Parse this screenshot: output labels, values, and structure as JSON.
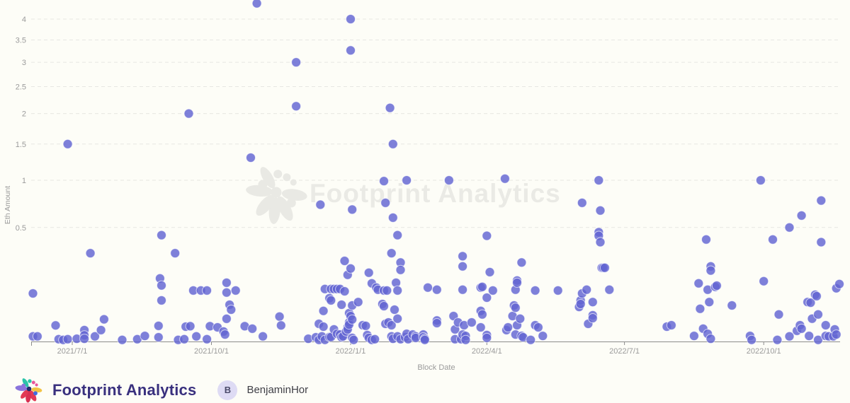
{
  "chart_data": {
    "type": "scatter",
    "title": "",
    "xlabel": "Block Date",
    "ylabel": "Eth Amount",
    "y_scale": "sqrt",
    "grid": "dashed-horizontal",
    "legend": "none",
    "y_ticks": [
      0.5,
      1,
      1.5,
      2,
      2.5,
      3,
      3.5,
      4
    ],
    "y_range": [
      0,
      4.5
    ],
    "x_ticks": [
      {
        "date": "2021-07-01",
        "label": "2021/7/1"
      },
      {
        "date": "2021-10-01",
        "label": "2021/10/1"
      },
      {
        "date": "2022-01-01",
        "label": "2022/1/1"
      },
      {
        "date": "2022-04-01",
        "label": "2022/4/1"
      },
      {
        "date": "2022-07-01",
        "label": "2022/7/1"
      },
      {
        "date": "2022-10-01",
        "label": "2022/10/1"
      }
    ],
    "x_range": [
      "2021-06-04",
      "2022-11-25"
    ],
    "point_color": "#6164D2",
    "points": [
      [
        "2021-06-05",
        0.089
      ],
      [
        "2021-06-05",
        0.001
      ],
      [
        "2021-06-08",
        0.001
      ],
      [
        "2021-06-20",
        0.01
      ],
      [
        "2021-06-22",
        0.0002
      ],
      [
        "2021-06-25",
        0.0001
      ],
      [
        "2021-06-28",
        1.5
      ],
      [
        "2021-06-28",
        0.0002
      ],
      [
        "2021-07-04",
        0.0003
      ],
      [
        "2021-07-09",
        0.005
      ],
      [
        "2021-07-09",
        0.0015
      ],
      [
        "2021-07-09",
        0.0003
      ],
      [
        "2021-07-13",
        0.3
      ],
      [
        "2021-07-16",
        0.001
      ],
      [
        "2021-07-20",
        0.005
      ],
      [
        "2021-07-22",
        0.019
      ],
      [
        "2021-08-03",
        0.0001
      ],
      [
        "2021-08-13",
        0.0002
      ],
      [
        "2021-08-18",
        0.0012
      ],
      [
        "2021-08-27",
        0.0094
      ],
      [
        "2021-08-27",
        0.0007
      ],
      [
        "2021-08-28",
        0.153
      ],
      [
        "2021-08-29",
        0.435
      ],
      [
        "2021-08-29",
        0.121
      ],
      [
        "2021-08-29",
        0.065
      ],
      [
        "2021-09-07",
        0.3
      ],
      [
        "2021-09-09",
        0.0001
      ],
      [
        "2021-09-13",
        0.0002
      ],
      [
        "2021-09-14",
        0.0085
      ],
      [
        "2021-09-16",
        2.0
      ],
      [
        "2021-09-17",
        0.009
      ],
      [
        "2021-09-19",
        0.1
      ],
      [
        "2021-09-21",
        0.001
      ],
      [
        "2021-09-24",
        0.1
      ],
      [
        "2021-09-28",
        0.1
      ],
      [
        "2021-09-28",
        0.0002
      ],
      [
        "2021-09-30",
        0.009
      ],
      [
        "2021-10-05",
        0.0077
      ],
      [
        "2021-10-09",
        0.0038
      ],
      [
        "2021-10-10",
        0.0019
      ],
      [
        "2021-10-11",
        0.133
      ],
      [
        "2021-10-11",
        0.092
      ],
      [
        "2021-10-11",
        0.0198
      ],
      [
        "2021-10-13",
        0.052
      ],
      [
        "2021-10-14",
        0.039
      ],
      [
        "2021-10-17",
        0.1
      ],
      [
        "2021-10-23",
        0.009
      ],
      [
        "2021-10-27",
        1.3
      ],
      [
        "2021-10-28",
        0.0063
      ],
      [
        "2021-10-31",
        4.4
      ],
      [
        "2021-11-04",
        0.001
      ],
      [
        "2021-11-15",
        0.024
      ],
      [
        "2021-11-16",
        0.01
      ],
      [
        "2021-11-26",
        3.0
      ],
      [
        "2021-11-26",
        2.13
      ],
      [
        "2021-12-04",
        0.0003
      ],
      [
        "2021-12-09",
        0.0007
      ],
      [
        "2021-12-11",
        0.012
      ],
      [
        "2021-12-11",
        0.0001
      ],
      [
        "2021-12-12",
        0.72
      ],
      [
        "2021-12-13",
        0.001
      ],
      [
        "2021-12-14",
        0.036
      ],
      [
        "2021-12-14",
        0.0085
      ],
      [
        "2021-12-15",
        0.106
      ],
      [
        "2021-12-15",
        0.0001
      ],
      [
        "2021-12-18",
        0.072
      ],
      [
        "2021-12-18",
        0.0008
      ],
      [
        "2021-12-19",
        0.106
      ],
      [
        "2021-12-19",
        0.065
      ],
      [
        "2021-12-19",
        0.0008
      ],
      [
        "2021-12-21",
        0.106
      ],
      [
        "2021-12-21",
        0.0056
      ],
      [
        "2021-12-23",
        0.106
      ],
      [
        "2021-12-23",
        0.0023
      ],
      [
        "2021-12-25",
        0.106
      ],
      [
        "2021-12-25",
        0.0019
      ],
      [
        "2021-12-26",
        0.052
      ],
      [
        "2021-12-26",
        0.0007
      ],
      [
        "2021-12-27",
        0.001
      ],
      [
        "2021-12-28",
        0.25
      ],
      [
        "2021-12-28",
        0.097
      ],
      [
        "2021-12-29",
        0.0038
      ],
      [
        "2021-12-30",
        0.171
      ],
      [
        "2021-12-30",
        0.0077
      ],
      [
        "2021-12-30",
        0.0056
      ],
      [
        "2021-12-31",
        0.031
      ],
      [
        "2021-12-31",
        0.014
      ],
      [
        "2021-12-31",
        0.011
      ],
      [
        "2022-01-01",
        4.0
      ],
      [
        "2022-01-01",
        3.26
      ],
      [
        "2022-01-01",
        0.205
      ],
      [
        "2022-01-01",
        0.025
      ],
      [
        "2022-01-02",
        0.67
      ],
      [
        "2022-01-02",
        0.05
      ],
      [
        "2022-01-02",
        0.0186
      ],
      [
        "2022-01-02",
        0.0005
      ],
      [
        "2022-01-03",
        0.0001
      ],
      [
        "2022-01-06",
        0.06
      ],
      [
        "2022-01-09",
        0.0102
      ],
      [
        "2022-01-11",
        0.0094
      ],
      [
        "2022-01-12",
        0.0016
      ],
      [
        "2022-01-13",
        0.182
      ],
      [
        "2022-01-13",
        0.0005
      ],
      [
        "2022-01-15",
        0.13
      ],
      [
        "2022-01-15",
        0.0001
      ],
      [
        "2022-01-17",
        0.0002
      ],
      [
        "2022-01-18",
        0.112
      ],
      [
        "2022-01-19",
        0.103
      ],
      [
        "2022-01-22",
        0.054
      ],
      [
        "2022-01-23",
        0.99
      ],
      [
        "2022-01-23",
        0.1
      ],
      [
        "2022-01-23",
        0.048
      ],
      [
        "2022-01-24",
        0.74
      ],
      [
        "2022-01-24",
        0.012
      ],
      [
        "2022-01-25",
        0.1
      ],
      [
        "2022-01-26",
        0.014
      ],
      [
        "2022-01-27",
        2.1
      ],
      [
        "2022-01-28",
        0.3
      ],
      [
        "2022-01-28",
        0.0102
      ],
      [
        "2022-01-28",
        0.001
      ],
      [
        "2022-01-29",
        1.5
      ],
      [
        "2022-01-29",
        0.59
      ],
      [
        "2022-01-29",
        0.0003
      ],
      [
        "2022-01-30",
        0.039
      ],
      [
        "2022-01-31",
        0.133
      ],
      [
        "2022-02-01",
        0.435
      ],
      [
        "2022-02-01",
        0.1
      ],
      [
        "2022-02-01",
        0.02
      ],
      [
        "2022-02-01",
        0.001
      ],
      [
        "2022-02-03",
        0.24
      ],
      [
        "2022-02-03",
        0.197
      ],
      [
        "2022-02-03",
        0.0002
      ],
      [
        "2022-02-06",
        0.0007
      ],
      [
        "2022-02-07",
        1.0
      ],
      [
        "2022-02-07",
        0.0023
      ],
      [
        "2022-02-08",
        0.0002
      ],
      [
        "2022-02-11",
        0.0019
      ],
      [
        "2022-02-13",
        0.001
      ],
      [
        "2022-02-13",
        0.0005
      ],
      [
        "2022-02-18",
        0.0019
      ],
      [
        "2022-02-18",
        0.0007
      ],
      [
        "2022-02-19",
        0.0003
      ],
      [
        "2022-02-19",
        0.0001
      ],
      [
        "2022-02-21",
        0.112
      ],
      [
        "2022-02-27",
        0.103
      ],
      [
        "2022-02-27",
        0.017
      ],
      [
        "2022-02-27",
        0.013
      ],
      [
        "2022-03-07",
        1.0
      ],
      [
        "2022-03-10",
        0.025
      ],
      [
        "2022-03-11",
        0.0056
      ],
      [
        "2022-03-11",
        0.0002
      ],
      [
        "2022-03-13",
        0.014
      ],
      [
        "2022-03-15",
        0.0002
      ],
      [
        "2022-03-16",
        0.28
      ],
      [
        "2022-03-16",
        0.217
      ],
      [
        "2022-03-16",
        0.103
      ],
      [
        "2022-03-16",
        0.0019
      ],
      [
        "2022-03-17",
        0.0102
      ],
      [
        "2022-03-18",
        0.0012
      ],
      [
        "2022-03-18",
        0.0001
      ],
      [
        "2022-03-22",
        0.014
      ],
      [
        "2022-03-28",
        0.112
      ],
      [
        "2022-03-28",
        0.036
      ],
      [
        "2022-03-28",
        0.0077
      ],
      [
        "2022-03-29",
        0.115
      ],
      [
        "2022-03-29",
        0.028
      ],
      [
        "2022-04-01",
        0.43
      ],
      [
        "2022-04-01",
        0.074
      ],
      [
        "2022-04-01",
        0.0016
      ],
      [
        "2022-04-01",
        0.0005
      ],
      [
        "2022-04-03",
        0.185
      ],
      [
        "2022-04-05",
        0.1
      ],
      [
        "2022-04-13",
        1.02
      ],
      [
        "2022-04-14",
        0.005
      ],
      [
        "2022-04-15",
        0.0077
      ],
      [
        "2022-04-18",
        0.025
      ],
      [
        "2022-04-19",
        0.05
      ],
      [
        "2022-04-20",
        0.103
      ],
      [
        "2022-04-20",
        0.044
      ],
      [
        "2022-04-20",
        0.0019
      ],
      [
        "2022-04-21",
        0.143
      ],
      [
        "2022-04-21",
        0.133
      ],
      [
        "2022-04-21",
        0.0102
      ],
      [
        "2022-04-23",
        0.02
      ],
      [
        "2022-04-24",
        0.24
      ],
      [
        "2022-04-24",
        0.0012
      ],
      [
        "2022-04-25",
        0.0007
      ],
      [
        "2022-04-30",
        0.0001
      ],
      [
        "2022-05-03",
        0.1
      ],
      [
        "2022-05-03",
        0.0102
      ],
      [
        "2022-05-05",
        0.0077
      ],
      [
        "2022-05-08",
        0.0012
      ],
      [
        "2022-05-18",
        0.1
      ],
      [
        "2022-06-01",
        0.046
      ],
      [
        "2022-06-02",
        0.065
      ],
      [
        "2022-06-02",
        0.054
      ],
      [
        "2022-06-03",
        0.74
      ],
      [
        "2022-06-03",
        0.089
      ],
      [
        "2022-06-06",
        0.103
      ],
      [
        "2022-06-07",
        0.012
      ],
      [
        "2022-06-10",
        0.06
      ],
      [
        "2022-06-10",
        0.0265
      ],
      [
        "2022-06-10",
        0.021
      ],
      [
        "2022-06-14",
        1.0
      ],
      [
        "2022-06-14",
        0.46
      ],
      [
        "2022-06-14",
        0.43
      ],
      [
        "2022-06-15",
        0.66
      ],
      [
        "2022-06-15",
        0.38
      ],
      [
        "2022-06-16",
        0.209
      ],
      [
        "2022-06-17",
        0.209
      ],
      [
        "2022-06-18",
        0.209
      ],
      [
        "2022-06-21",
        0.103
      ],
      [
        "2022-07-29",
        0.0085
      ],
      [
        "2022-08-01",
        0.0102
      ],
      [
        "2022-08-16",
        0.0012
      ],
      [
        "2022-08-19",
        0.13
      ],
      [
        "2022-08-20",
        0.041
      ],
      [
        "2022-08-22",
        0.0063
      ],
      [
        "2022-08-24",
        0.4
      ],
      [
        "2022-08-25",
        0.103
      ],
      [
        "2022-08-25",
        0.0023
      ],
      [
        "2022-08-26",
        0.06
      ],
      [
        "2022-08-27",
        0.217
      ],
      [
        "2022-08-27",
        0.194
      ],
      [
        "2022-08-27",
        0.0003
      ],
      [
        "2022-08-30",
        0.115
      ],
      [
        "2022-08-31",
        0.12
      ],
      [
        "2022-09-10",
        0.05
      ],
      [
        "2022-09-22",
        0.0012
      ],
      [
        "2022-09-23",
        0.0001
      ],
      [
        "2022-09-29",
        1.0
      ],
      [
        "2022-10-01",
        0.14
      ],
      [
        "2022-10-07",
        0.4
      ],
      [
        "2022-10-10",
        0.0001
      ],
      [
        "2022-10-11",
        0.028
      ],
      [
        "2022-10-18",
        0.5
      ],
      [
        "2022-10-18",
        0.001
      ],
      [
        "2022-10-23",
        0.0044
      ],
      [
        "2022-10-25",
        0.0102
      ],
      [
        "2022-10-26",
        0.61
      ],
      [
        "2022-10-26",
        0.0063
      ],
      [
        "2022-10-30",
        0.06
      ],
      [
        "2022-10-31",
        0.0012
      ],
      [
        "2022-11-01",
        0.058
      ],
      [
        "2022-11-02",
        0.02
      ],
      [
        "2022-11-04",
        0.084
      ],
      [
        "2022-11-05",
        0.079
      ],
      [
        "2022-11-06",
        0.028
      ],
      [
        "2022-11-06",
        0.0001
      ],
      [
        "2022-11-08",
        0.765
      ],
      [
        "2022-11-08",
        0.38
      ],
      [
        "2022-11-11",
        0.0102
      ],
      [
        "2022-11-11",
        0.0012
      ],
      [
        "2022-11-13",
        0.001
      ],
      [
        "2022-11-16",
        0.001
      ],
      [
        "2022-11-17",
        0.0056
      ],
      [
        "2022-11-18",
        0.109
      ],
      [
        "2022-11-18",
        0.0019
      ],
      [
        "2022-11-20",
        0.127
      ]
    ]
  },
  "watermark": {
    "text": "Footprint Analytics"
  },
  "footer": {
    "brand": "Footprint Analytics",
    "avatar_letter": "B",
    "username": "BenjaminHor"
  },
  "colors": {
    "background": "#FDFDF7",
    "dot": "#6164D2",
    "grid": "#E7E7E2",
    "axis": "#8C8C8C",
    "tick_text": "#9B9B9B",
    "watermark": "#EAEAE5",
    "brand_text": "#39307E",
    "avatar_bg": "#DEDBF4",
    "avatar_text": "#4B4B6B",
    "username_text": "#3F3F46"
  }
}
